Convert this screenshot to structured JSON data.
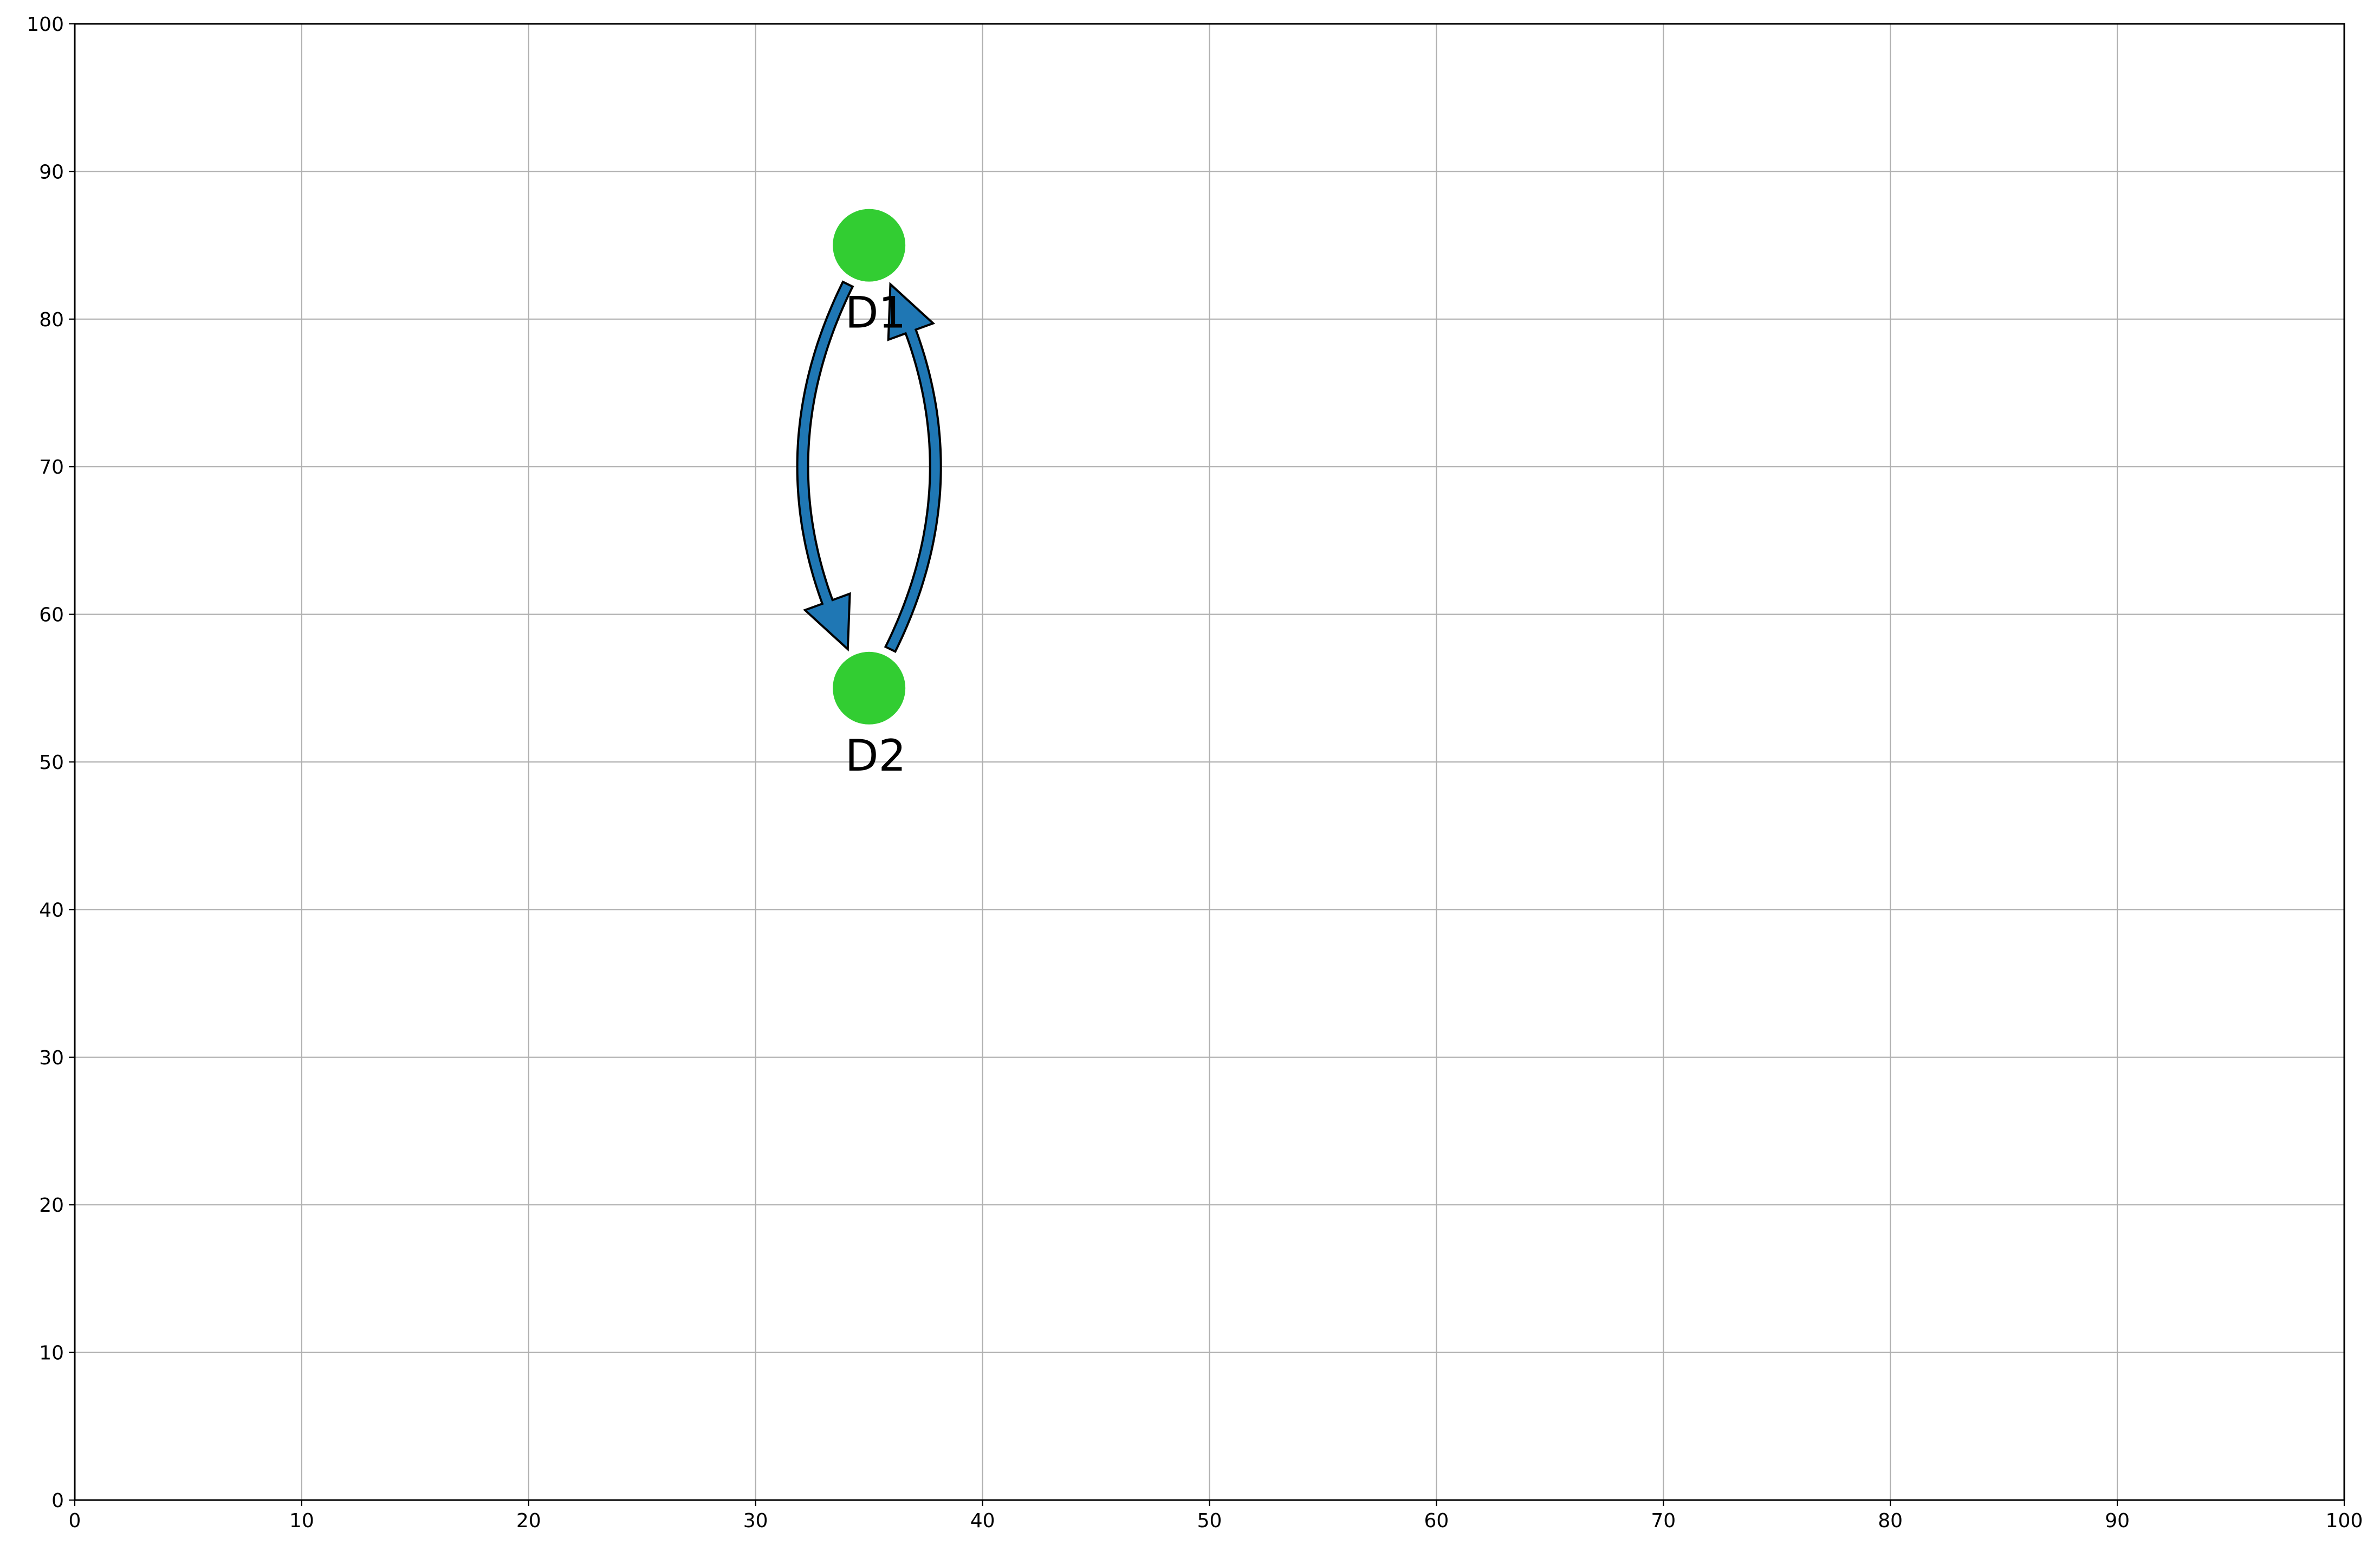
{
  "chart_data": {
    "type": "scatter",
    "title": "",
    "xlabel": "",
    "ylabel": "",
    "xlim": [
      0,
      100
    ],
    "ylim": [
      0,
      100
    ],
    "grid": true,
    "x_ticks": [
      "0",
      "10",
      "20",
      "30",
      "40",
      "50",
      "60",
      "70",
      "80",
      "90",
      "100"
    ],
    "y_ticks": [
      "0",
      "10",
      "20",
      "30",
      "40",
      "50",
      "60",
      "70",
      "80",
      "90",
      "100"
    ],
    "nodes": [
      {
        "label": "D1",
        "x": 35,
        "y": 85,
        "color": "#32cd32"
      },
      {
        "label": "D2",
        "x": 35,
        "y": 55,
        "color": "#32cd32"
      }
    ],
    "edges": [
      {
        "from": "D1",
        "to": "D2",
        "color": "#1f77b4"
      },
      {
        "from": "D2",
        "to": "D1",
        "color": "#1f77b4"
      }
    ]
  }
}
